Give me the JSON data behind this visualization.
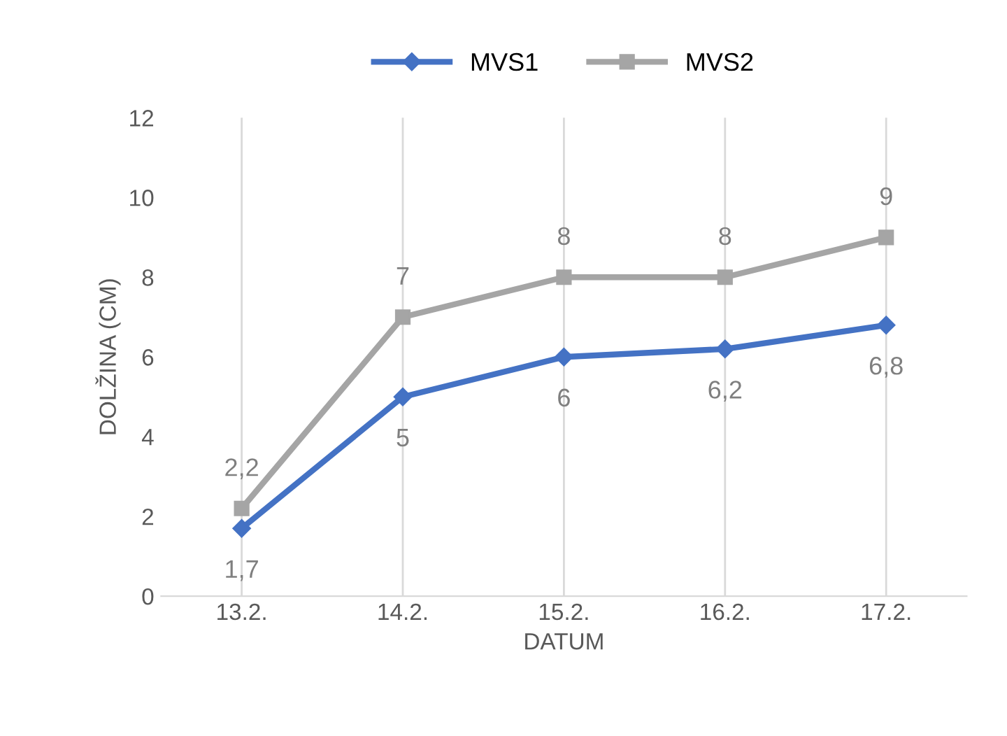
{
  "chart_data": {
    "type": "line",
    "xlabel": "DATUM",
    "ylabel": "DOLŽINA (CM)",
    "categories": [
      "13.2.",
      "14.2.",
      "15.2.",
      "16.2.",
      "17.2."
    ],
    "series": [
      {
        "name": "MVS1",
        "color": "#4472c4",
        "marker": "diamond",
        "values": [
          1.7,
          5,
          6,
          6.2,
          6.8
        ],
        "value_labels": [
          "1,7",
          "5",
          "6",
          "6,2",
          "6,8"
        ]
      },
      {
        "name": "MVS2",
        "color": "#a5a5a5",
        "marker": "square",
        "values": [
          2.2,
          7,
          8,
          8,
          9
        ],
        "value_labels": [
          "2,2",
          "7",
          "8",
          "8",
          "9"
        ]
      }
    ],
    "ylim": [
      0,
      12
    ],
    "yticks": [
      0,
      2,
      4,
      6,
      8,
      10,
      12
    ],
    "grid": "x",
    "legend": "top"
  }
}
